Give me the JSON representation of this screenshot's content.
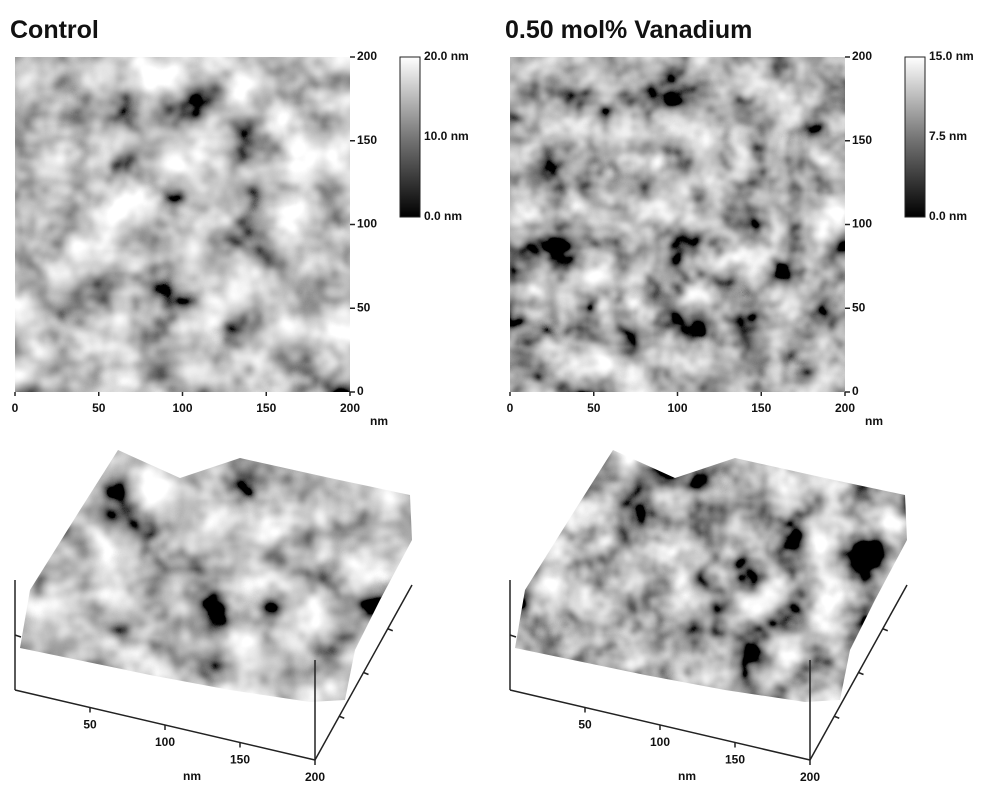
{
  "panels": [
    {
      "title": "Control",
      "x_axis": {
        "ticks": [
          0,
          50,
          100,
          150,
          200
        ],
        "unit": "nm"
      },
      "y_axis": {
        "ticks": [
          0,
          50,
          100,
          150,
          200
        ]
      },
      "colorbar": {
        "labels": [
          "20.0 nm",
          "10.0 nm",
          "0.0 nm"
        ]
      },
      "surface_3d": {
        "ticks": [
          50,
          100,
          150,
          200
        ],
        "unit": "nm"
      }
    },
    {
      "title": "0.50 mol% Vanadium",
      "x_axis": {
        "ticks": [
          0,
          50,
          100,
          150,
          200
        ],
        "unit": "nm"
      },
      "y_axis": {
        "ticks": [
          0,
          50,
          100,
          150,
          200
        ]
      },
      "colorbar": {
        "labels": [
          "15.0 nm",
          "7.5 nm",
          "0.0 nm"
        ]
      },
      "surface_3d": {
        "ticks": [
          50,
          100,
          150,
          200
        ],
        "unit": "nm"
      }
    }
  ]
}
